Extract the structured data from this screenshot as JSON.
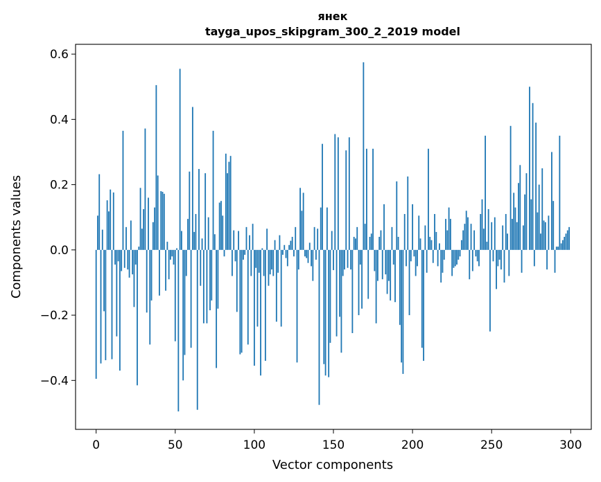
{
  "chart_data": {
    "type": "bar",
    "title": "янек",
    "subtitle": "tayga_upos_skipgram_300_2_2019 model",
    "xlabel": "Vector components",
    "ylabel": "Components values",
    "xlim": [
      -13,
      313
    ],
    "ylim": [
      -0.55,
      0.63
    ],
    "xticks": [
      0,
      50,
      100,
      150,
      200,
      250,
      300
    ],
    "xtick_labels": [
      "0",
      "50",
      "100",
      "150",
      "200",
      "250",
      "300"
    ],
    "yticks": [
      -0.4,
      -0.2,
      0.0,
      0.2,
      0.4,
      0.6
    ],
    "ytick_labels": [
      "−0.4",
      "−0.2",
      "0.0",
      "0.2",
      "0.4",
      "0.6"
    ],
    "grid": false,
    "bar_color": "#1f77b4",
    "x": [
      0,
      1,
      2,
      3,
      4,
      5,
      6,
      7,
      8,
      9,
      10,
      11,
      12,
      13,
      14,
      15,
      16,
      17,
      18,
      19,
      20,
      21,
      22,
      23,
      24,
      25,
      26,
      27,
      28,
      29,
      30,
      31,
      32,
      33,
      34,
      35,
      36,
      37,
      38,
      39,
      40,
      41,
      42,
      43,
      44,
      45,
      46,
      47,
      48,
      49,
      50,
      51,
      52,
      53,
      54,
      55,
      56,
      57,
      58,
      59,
      60,
      61,
      62,
      63,
      64,
      65,
      66,
      67,
      68,
      69,
      70,
      71,
      72,
      73,
      74,
      75,
      76,
      77,
      78,
      79,
      80,
      81,
      82,
      83,
      84,
      85,
      86,
      87,
      88,
      89,
      90,
      91,
      92,
      93,
      94,
      95,
      96,
      97,
      98,
      99,
      100,
      101,
      102,
      103,
      104,
      105,
      106,
      107,
      108,
      109,
      110,
      111,
      112,
      113,
      114,
      115,
      116,
      117,
      118,
      119,
      120,
      121,
      122,
      123,
      124,
      125,
      126,
      127,
      128,
      129,
      130,
      131,
      132,
      133,
      134,
      135,
      136,
      137,
      138,
      139,
      140,
      141,
      142,
      143,
      144,
      145,
      146,
      147,
      148,
      149,
      150,
      151,
      152,
      153,
      154,
      155,
      156,
      157,
      158,
      159,
      160,
      161,
      162,
      163,
      164,
      165,
      166,
      167,
      168,
      169,
      170,
      171,
      172,
      173,
      174,
      175,
      176,
      177,
      178,
      179,
      180,
      181,
      182,
      183,
      184,
      185,
      186,
      187,
      188,
      189,
      190,
      191,
      192,
      193,
      194,
      195,
      196,
      197,
      198,
      199,
      200,
      201,
      202,
      203,
      204,
      205,
      206,
      207,
      208,
      209,
      210,
      211,
      212,
      213,
      214,
      215,
      216,
      217,
      218,
      219,
      220,
      221,
      222,
      223,
      224,
      225,
      226,
      227,
      228,
      229,
      230,
      231,
      232,
      233,
      234,
      235,
      236,
      237,
      238,
      239,
      240,
      241,
      242,
      243,
      244,
      245,
      246,
      247,
      248,
      249,
      250,
      251,
      252,
      253,
      254,
      255,
      256,
      257,
      258,
      259,
      260,
      261,
      262,
      263,
      264,
      265,
      266,
      267,
      268,
      269,
      270,
      271,
      272,
      273,
      274,
      275,
      276,
      277,
      278,
      279,
      280,
      281,
      282,
      283,
      284,
      285,
      286,
      287,
      288,
      289,
      290,
      291,
      292,
      293,
      294,
      295,
      296,
      297,
      298,
      299
    ],
    "values": [
      -0.395,
      0.105,
      0.232,
      -0.348,
      0.062,
      -0.188,
      -0.338,
      0.152,
      0.118,
      0.185,
      -0.335,
      0.176,
      -0.045,
      -0.265,
      -0.035,
      -0.37,
      -0.065,
      0.365,
      -0.055,
      0.07,
      -0.06,
      -0.085,
      0.09,
      -0.075,
      -0.175,
      -0.045,
      -0.415,
      0.01,
      0.19,
      0.065,
      0.125,
      0.372,
      -0.192,
      0.16,
      -0.29,
      -0.155,
      0.085,
      0.13,
      0.505,
      0.228,
      -0.14,
      0.18,
      0.178,
      0.172,
      -0.125,
      0.025,
      -0.09,
      -0.03,
      -0.02,
      -0.045,
      -0.28,
      0.005,
      -0.495,
      0.555,
      0.058,
      -0.4,
      -0.322,
      -0.08,
      0.095,
      0.24,
      -0.3,
      0.438,
      0.055,
      0.11,
      -0.49,
      0.248,
      -0.11,
      0.035,
      -0.225,
      0.235,
      -0.225,
      0.1,
      -0.185,
      -0.155,
      0.365,
      0.048,
      -0.362,
      -0.18,
      0.145,
      0.15,
      0.105,
      -0.02,
      0.295,
      0.235,
      0.27,
      0.288,
      -0.08,
      0.06,
      -0.035,
      -0.19,
      0.058,
      -0.32,
      -0.315,
      -0.03,
      -0.015,
      0.07,
      -0.29,
      0.045,
      -0.08,
      0.08,
      -0.355,
      -0.055,
      -0.235,
      -0.07,
      -0.385,
      0.005,
      -0.08,
      -0.34,
      0.065,
      -0.11,
      -0.075,
      -0.06,
      -0.08,
      0.03,
      -0.22,
      -0.07,
      0.045,
      -0.235,
      -0.015,
      0.015,
      -0.025,
      -0.05,
      0.015,
      0.028,
      0.04,
      -0.02,
      0.07,
      -0.345,
      -0.06,
      0.19,
      0.12,
      0.175,
      -0.02,
      -0.025,
      -0.04,
      0.022,
      -0.05,
      -0.095,
      0.07,
      -0.03,
      0.065,
      -0.475,
      0.13,
      0.325,
      -0.35,
      -0.385,
      0.13,
      -0.39,
      -0.285,
      0.058,
      -0.062,
      0.355,
      -0.265,
      0.345,
      -0.205,
      -0.315,
      -0.08,
      -0.06,
      0.305,
      -0.055,
      0.345,
      -0.06,
      -0.255,
      0.04,
      0.035,
      0.07,
      -0.2,
      -0.045,
      -0.18,
      0.575,
      0.08,
      0.31,
      -0.15,
      0.04,
      0.05,
      0.31,
      -0.065,
      -0.225,
      -0.095,
      0.04,
      0.06,
      -0.09,
      0.14,
      -0.075,
      -0.135,
      -0.095,
      -0.155,
      0.07,
      -0.045,
      -0.16,
      0.21,
      0.04,
      -0.23,
      -0.345,
      -0.38,
      0.11,
      -0.05,
      0.225,
      -0.2,
      -0.035,
      0.14,
      -0.02,
      -0.08,
      -0.05,
      0.105,
      0.035,
      -0.3,
      -0.34,
      0.075,
      -0.07,
      0.31,
      0.04,
      0.03,
      -0.04,
      0.11,
      0.055,
      -0.05,
      0.02,
      -0.1,
      -0.07,
      -0.03,
      0.095,
      0.06,
      0.13,
      0.095,
      -0.08,
      -0.055,
      -0.05,
      -0.045,
      -0.03,
      -0.02,
      0.03,
      0.06,
      0.08,
      0.12,
      0.1,
      -0.09,
      0.08,
      -0.065,
      0.06,
      -0.02,
      -0.035,
      -0.05,
      0.11,
      0.155,
      0.065,
      0.35,
      0.025,
      0.125,
      -0.25,
      0.085,
      -0.035,
      0.1,
      -0.12,
      -0.05,
      -0.03,
      -0.06,
      0.075,
      -0.1,
      0.11,
      0.05,
      -0.08,
      0.38,
      0.095,
      0.175,
      0.13,
      0.085,
      0.205,
      0.26,
      -0.07,
      0.075,
      0.17,
      0.235,
      0.0,
      0.5,
      0.155,
      0.45,
      -0.05,
      0.39,
      0.115,
      0.2,
      0.05,
      0.25,
      0.09,
      0.085,
      -0.06,
      0.105,
      0.0,
      0.3,
      0.15,
      -0.07,
      0.01,
      0.01,
      0.35,
      0.02,
      0.03,
      0.04,
      0.05,
      0.06,
      0.07
    ]
  }
}
